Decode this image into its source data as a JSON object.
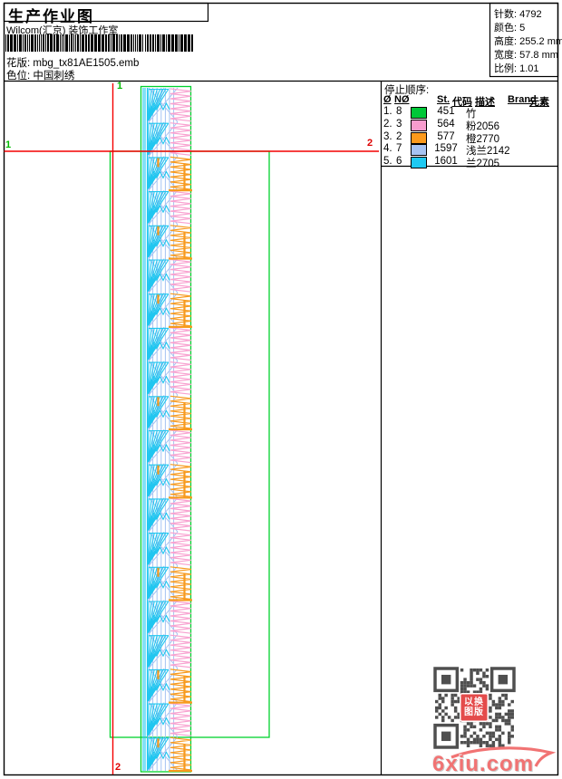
{
  "header": {
    "title": "生产作业图",
    "subtitle": "Wilcom(汇京) 装饰工作室",
    "pattern_label": "花版:",
    "pattern_value": "mbg_tx81AE1505.emb",
    "colorway_label": "色位:",
    "colorway_value": "中国刺绣"
  },
  "stats": {
    "items": [
      {
        "label": "针数:",
        "value": "4792"
      },
      {
        "label": "颜色:",
        "value": "5"
      },
      {
        "label": "高度:",
        "value": "255.2 mm"
      },
      {
        "label": "宽度:",
        "value": "57.8 mm"
      },
      {
        "label": "比例:",
        "value": "1.01"
      }
    ]
  },
  "stop_sequence": {
    "title": "停止顺序:",
    "columns": [
      "Ø",
      "NØ",
      "St.",
      "代码",
      "描述",
      "Brand",
      "元素"
    ],
    "rows": [
      {
        "index": "1.",
        "needle": "8",
        "swatch": "#00c838",
        "st": "451",
        "desc": "竹"
      },
      {
        "index": "2.",
        "needle": "3",
        "swatch": "#f89cce",
        "st": "564",
        "desc": "粉2056"
      },
      {
        "index": "3.",
        "needle": "2",
        "swatch": "#fc9a1c",
        "st": "577",
        "desc": "橙2770"
      },
      {
        "index": "4.",
        "needle": "7",
        "swatch": "#a6c3f2",
        "st": "1597",
        "desc": "浅兰2142"
      },
      {
        "index": "5.",
        "needle": "6",
        "swatch": "#1ec9f2",
        "st": "1601",
        "desc": "兰2705"
      }
    ]
  },
  "markers": {
    "start_label": "1",
    "end_label": "2",
    "line_color": "#f40000",
    "start_color": "#00bb00",
    "end_color": "#dd0000"
  },
  "design": {
    "frame_color": "#00d22e",
    "colors": {
      "cyan": "#20c6f0",
      "periwinkle": "#a6c3f2",
      "pink": "#f8a2d0",
      "orange": "#f79a1e"
    },
    "blocks": 20,
    "zigzag_sequence": "PPOPOPOPPOPOPPOPPOPO"
  },
  "watermark": {
    "seal_line1": "以换",
    "seal_line2": "图版",
    "logo": "6xiu.com",
    "logo_color": "#f17373",
    "qr_color": "#4f4f4f"
  }
}
